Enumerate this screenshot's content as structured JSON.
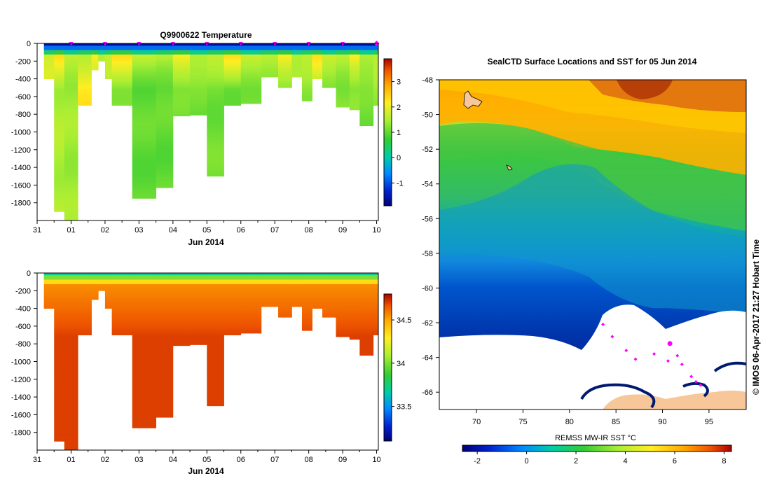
{
  "chart_data": [
    {
      "type": "heatmap",
      "name": "temperature-section",
      "title": "Q9900622  Temperature",
      "xlabel": "Jun 2014",
      "ylabel": "",
      "x_tick_labels": [
        "31",
        "01",
        "02",
        "03",
        "04",
        "05",
        "06",
        "07",
        "08",
        "09",
        "10"
      ],
      "x_tick_values": [
        0,
        1,
        2,
        3,
        4,
        5,
        6,
        7,
        8,
        9,
        10
      ],
      "xlim": [
        0,
        10.05
      ],
      "y_tick_labels": [
        "0",
        "-200",
        "-400",
        "-600",
        "-800",
        "-1000",
        "-1200",
        "-1400",
        "-1600",
        "-1800"
      ],
      "ylim": [
        -2000,
        0
      ],
      "colorbar": {
        "ticks": [
          -1,
          0,
          1,
          2,
          3
        ],
        "labels": [
          "-1",
          "0",
          "1",
          "2",
          "3"
        ],
        "range": [
          -1.9,
          3.9
        ]
      },
      "profile_markers_days": [
        1,
        2,
        3,
        4,
        5,
        6,
        7,
        8,
        9,
        10
      ],
      "profiles": [
        {
          "x0": 0.2,
          "x1": 0.5,
          "depth": 400,
          "deep": 1.9
        },
        {
          "x0": 0.5,
          "x1": 0.8,
          "depth": 1900,
          "deep": 1.5
        },
        {
          "x0": 0.8,
          "x1": 1.2,
          "depth": 2000,
          "deep": 1.4
        },
        {
          "x0": 1.2,
          "x1": 1.6,
          "depth": 700,
          "deep": 2.2
        },
        {
          "x0": 1.6,
          "x1": 1.8,
          "depth": 300,
          "deep": 1.4
        },
        {
          "x0": 1.8,
          "x1": 2.0,
          "depth": 200,
          "deep": 1.2
        },
        {
          "x0": 2.0,
          "x1": 2.2,
          "depth": 400,
          "deep": 1.5
        },
        {
          "x0": 2.2,
          "x1": 2.8,
          "depth": 700,
          "deep": 1.3
        },
        {
          "x0": 2.8,
          "x1": 3.5,
          "depth": 1750,
          "deep": 1.0
        },
        {
          "x0": 3.5,
          "x1": 4.0,
          "depth": 1630,
          "deep": 1.0
        },
        {
          "x0": 4.0,
          "x1": 4.5,
          "depth": 820,
          "deep": 1.1
        },
        {
          "x0": 4.5,
          "x1": 5.0,
          "depth": 810,
          "deep": 1.1
        },
        {
          "x0": 5.0,
          "x1": 5.5,
          "depth": 1500,
          "deep": 1.1
        },
        {
          "x0": 5.5,
          "x1": 6.0,
          "depth": 700,
          "deep": 1.1
        },
        {
          "x0": 6.0,
          "x1": 6.6,
          "depth": 680,
          "deep": 1.2
        },
        {
          "x0": 6.6,
          "x1": 7.1,
          "depth": 380,
          "deep": 1.3
        },
        {
          "x0": 7.1,
          "x1": 7.5,
          "depth": 500,
          "deep": 1.2
        },
        {
          "x0": 7.5,
          "x1": 7.8,
          "depth": 380,
          "deep": 1.3
        },
        {
          "x0": 7.8,
          "x1": 8.1,
          "depth": 650,
          "deep": 1.2
        },
        {
          "x0": 8.1,
          "x1": 8.4,
          "depth": 400,
          "deep": 1.4
        },
        {
          "x0": 8.4,
          "x1": 8.8,
          "depth": 500,
          "deep": 1.3
        },
        {
          "x0": 8.8,
          "x1": 9.2,
          "depth": 720,
          "deep": 1.2
        },
        {
          "x0": 9.2,
          "x1": 9.5,
          "depth": 750,
          "deep": 1.2
        },
        {
          "x0": 9.5,
          "x1": 9.9,
          "depth": 930,
          "deep": 1.1
        },
        {
          "x0": 9.9,
          "x1": 10.05,
          "depth": 700,
          "deep": 1.3
        }
      ]
    },
    {
      "type": "heatmap",
      "name": "salinity-section",
      "title": "",
      "xlabel": "Jun 2014",
      "ylabel": "",
      "x_tick_labels": [
        "31",
        "01",
        "02",
        "03",
        "04",
        "05",
        "06",
        "07",
        "08",
        "09",
        "10"
      ],
      "x_tick_values": [
        0,
        1,
        2,
        3,
        4,
        5,
        6,
        7,
        8,
        9,
        10
      ],
      "xlim": [
        0,
        10.05
      ],
      "y_tick_labels": [
        "0",
        "-200",
        "-400",
        "-600",
        "-800",
        "-1000",
        "-1200",
        "-1400",
        "-1600",
        "-1800"
      ],
      "ylim": [
        -2000,
        0
      ],
      "colorbar": {
        "ticks": [
          33.5,
          34,
          34.5
        ],
        "labels": [
          "33.5",
          "34",
          "34.5"
        ],
        "range": [
          33.1,
          34.8
        ]
      }
    },
    {
      "type": "heatmap",
      "name": "sst-map",
      "title": "SealCTD Surface Locations and SST for 05 Jun 2014",
      "xlabel": "",
      "ylabel": "",
      "x_tick_labels": [
        "70",
        "75",
        "80",
        "85",
        "90",
        "95"
      ],
      "x_tick_values": [
        70,
        75,
        80,
        85,
        90,
        95
      ],
      "xlim": [
        66,
        99
      ],
      "y_tick_labels": [
        "-48",
        "-50",
        "-52",
        "-54",
        "-56",
        "-58",
        "-60",
        "-62",
        "-64",
        "-66"
      ],
      "y_tick_values": [
        -48,
        -50,
        -52,
        -54,
        -56,
        -58,
        -60,
        -62,
        -64,
        -66
      ],
      "ylim": [
        -67,
        -48
      ],
      "colorbar": {
        "title": "REMSS MW-IR SST °C",
        "ticks": [
          -2,
          0,
          2,
          4,
          6,
          8
        ],
        "labels": [
          "-2",
          "0",
          "2",
          "4",
          "6",
          "8"
        ],
        "range": [
          -2.6,
          8.3
        ]
      },
      "seal_track": [
        [
          83.6,
          -62.1
        ],
        [
          84.6,
          -62.8
        ],
        [
          86.1,
          -63.6
        ],
        [
          87.1,
          -64.1
        ],
        [
          89.1,
          -63.8
        ],
        [
          90.6,
          -64.2
        ],
        [
          91.6,
          -63.9
        ],
        [
          92.1,
          -64.4
        ],
        [
          93.1,
          -65.1
        ],
        [
          93.6,
          -65.4
        ],
        [
          94.1,
          -65.6
        ]
      ],
      "seal_location": [
        90.8,
        -63.2
      ]
    }
  ],
  "credit": "© IMOS 06-Apr-2017 21:27 Hobart Time"
}
